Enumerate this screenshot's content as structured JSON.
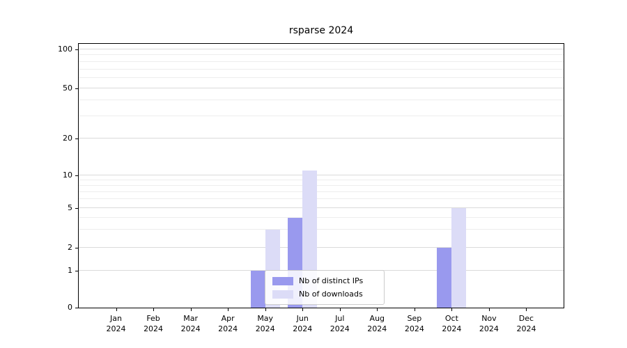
{
  "title": "rsparse 2024",
  "chart_data": {
    "type": "bar",
    "title": "rsparse 2024",
    "categories": [
      "Jan 2024",
      "Feb 2024",
      "Mar 2024",
      "Apr 2024",
      "May 2024",
      "Jun 2024",
      "Jul 2024",
      "Aug 2024",
      "Sep 2024",
      "Oct 2024",
      "Nov 2024",
      "Dec 2024"
    ],
    "series": [
      {
        "name": "Nb of distinct IPs",
        "color": "#9999ee",
        "values": [
          0,
          0,
          0,
          0,
          1,
          4,
          0,
          0,
          0,
          2,
          0,
          0
        ]
      },
      {
        "name": "Nb of downloads",
        "color": "#dcdcf7",
        "values": [
          0,
          0,
          0,
          0,
          3,
          11,
          0,
          0,
          0,
          5,
          0,
          0
        ]
      }
    ],
    "xlabel": "",
    "ylabel": "",
    "yscale": "log-like (linear segment 0-1, log above 1)",
    "ylim": [
      0,
      110
    ],
    "ytick_values": [
      0,
      1,
      2,
      5,
      10,
      20,
      50,
      100
    ],
    "ytick_labels": [
      "0",
      "1",
      "2",
      "5",
      "10",
      "20",
      "50",
      "100"
    ],
    "grid": true,
    "grid_values": {
      "major": [
        1,
        2,
        5,
        10,
        20,
        50,
        100
      ],
      "minor": [
        3,
        4,
        6,
        7,
        8,
        9,
        30,
        40,
        60,
        70,
        80,
        90
      ]
    },
    "legend": {
      "entries": [
        "Nb of distinct IPs",
        "Nb of downloads"
      ],
      "position": "lower center",
      "border_color": "#cccccc"
    },
    "layout": {
      "y_anchors": [
        [
          0,
          0
        ],
        [
          1,
          0.139
        ],
        [
          2,
          0.228
        ],
        [
          5,
          0.378
        ],
        [
          10,
          0.501
        ],
        [
          20,
          0.64
        ],
        [
          50,
          0.832
        ],
        [
          100,
          0.979
        ]
      ]
    }
  }
}
